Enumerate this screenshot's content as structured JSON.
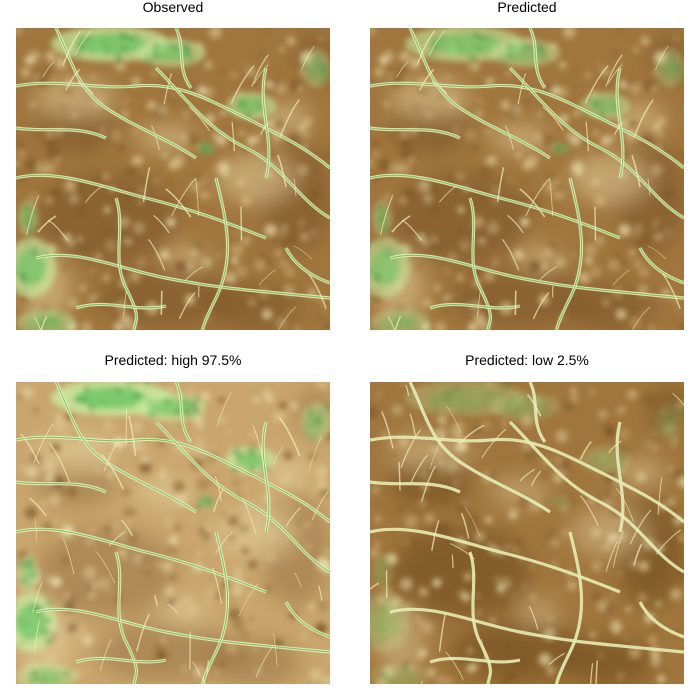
{
  "panels": [
    {
      "title": "Observed",
      "variant": "observed"
    },
    {
      "title": "Predicted",
      "variant": "predicted"
    },
    {
      "title": "Predicted: high 97.5%",
      "variant": "high"
    },
    {
      "title": "Predicted: low 2.5%",
      "variant": "low"
    }
  ],
  "colors": {
    "dark_brown": "#7a5424",
    "mid_brown": "#a0763e",
    "light_brown": "#c9a66e",
    "tan": "#e2cc98",
    "cream": "#f6efbf",
    "pale_green": "#c8eca0",
    "green": "#5cc25c",
    "dark_green": "#1f7a2e"
  }
}
